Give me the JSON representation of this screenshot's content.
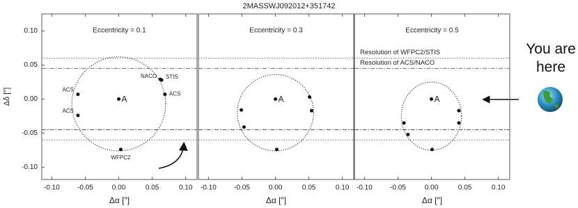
{
  "title": "2MASSWJ092012+351742",
  "xlabel": "Δα [″]",
  "ylabel": "Δδ [″]",
  "annotation": "You are here",
  "resolution_lines": [
    {
      "label": "Resolution of WFPC2/STIS",
      "value": 0.06,
      "style": "dotted"
    },
    {
      "label": "Resolution of ACS/NACO",
      "value": 0.045,
      "style": "dashdot"
    }
  ],
  "chart_data": [
    {
      "type": "scatter",
      "title": "Eccentricity = 0.1",
      "xlim": [
        -0.115,
        0.117
      ],
      "ylim": [
        -0.118,
        0.125
      ],
      "xticks": [
        {
          "value": -0.1,
          "label": "-0.10"
        },
        {
          "value": -0.05,
          "label": "-0.05"
        },
        {
          "value": 0,
          "label": "0.00"
        },
        {
          "value": 0.05,
          "label": "0.05"
        },
        {
          "value": 0.1,
          "label": "0.10"
        }
      ],
      "yticks": [
        {
          "value": -0.1,
          "label": "-0.10"
        },
        {
          "value": -0.05,
          "label": "-0.05"
        },
        {
          "value": 0,
          "label": "0.00"
        },
        {
          "value": 0.05,
          "label": "0.05"
        },
        {
          "value": 0.1,
          "label": "0.10"
        }
      ],
      "orbit": {
        "cx": 0,
        "cy": -0.007,
        "rx": 0.07,
        "ry": 0.069
      },
      "primary": {
        "label": "A",
        "x": 0,
        "y": 0
      },
      "x": [
        -0.061,
        -0.061,
        0.062,
        0.064,
        0.069,
        0.003
      ],
      "values": [
        0.007,
        -0.024,
        0.029,
        0.028,
        0.007,
        -0.074
      ],
      "labels": [
        "ACS",
        "ACS",
        "NACO",
        "STIS",
        "ACS",
        "WFPC2"
      ]
    },
    {
      "type": "scatter",
      "title": "Eccentricity = 0.3",
      "xlim": [
        -0.115,
        0.117
      ],
      "ylim": [
        -0.118,
        0.125
      ],
      "xticks": [
        {
          "value": -0.1,
          "label": "-0.10"
        },
        {
          "value": -0.05,
          "label": "-0.05"
        },
        {
          "value": 0,
          "label": "0.00"
        },
        {
          "value": 0.05,
          "label": "0.05"
        },
        {
          "value": 0.1,
          "label": "0.10"
        }
      ],
      "orbit": {
        "cx": 0,
        "cy": -0.02,
        "rx": 0.057,
        "ry": 0.056
      },
      "primary": {
        "label": "A",
        "x": 0,
        "y": 0
      },
      "x": [
        -0.051,
        -0.047,
        0.051,
        0.054,
        0.002
      ],
      "values": [
        -0.016,
        -0.041,
        0.003,
        -0.017,
        -0.074
      ]
    },
    {
      "type": "scatter",
      "title": "Eccentricity = 0.5",
      "xlim": [
        -0.115,
        0.117
      ],
      "ylim": [
        -0.118,
        0.125
      ],
      "xticks": [
        {
          "value": -0.1,
          "label": "-0.10"
        },
        {
          "value": -0.05,
          "label": "-0.05"
        },
        {
          "value": 0,
          "label": "0.00"
        },
        {
          "value": 0.05,
          "label": "0.05"
        },
        {
          "value": 0.1,
          "label": "0.10"
        }
      ],
      "orbit": {
        "cx": 0,
        "cy": -0.025,
        "rx": 0.045,
        "ry": 0.05
      },
      "primary": {
        "label": "A",
        "x": 0,
        "y": 0
      },
      "x": [
        -0.041,
        -0.035,
        0.041,
        0.041,
        0.001
      ],
      "values": [
        -0.035,
        -0.052,
        -0.017,
        -0.035,
        -0.074
      ]
    }
  ]
}
